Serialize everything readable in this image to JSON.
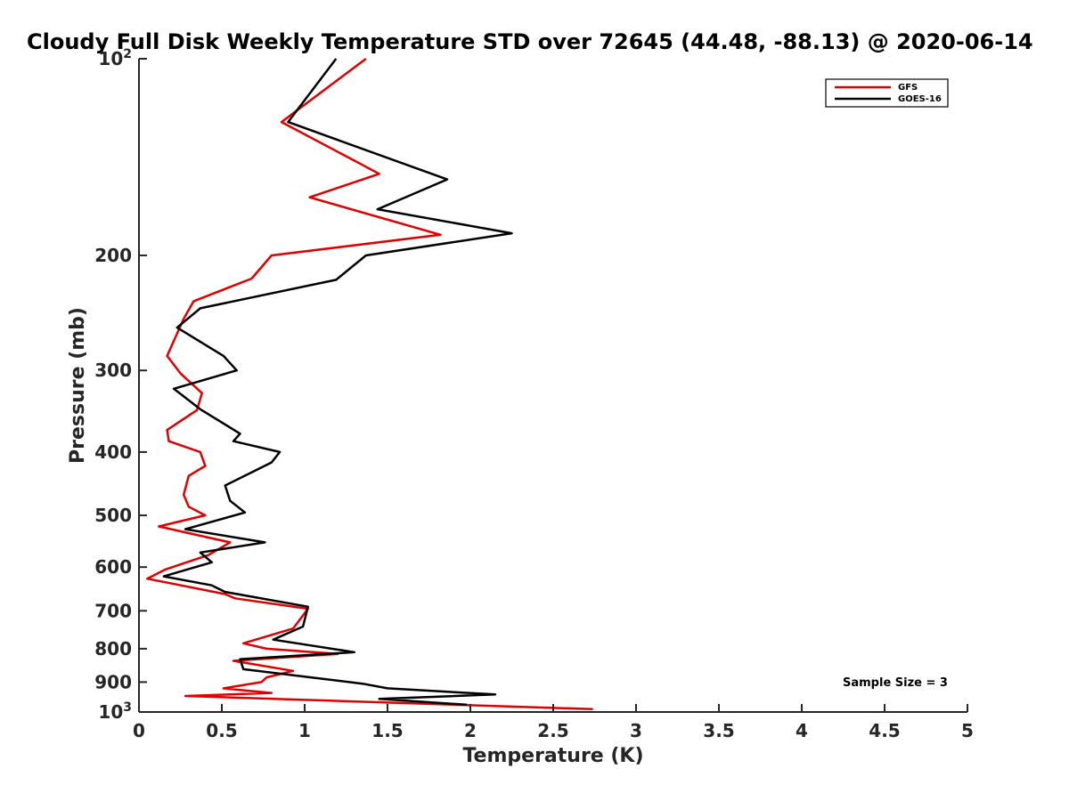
{
  "chart_data": {
    "type": "line",
    "title": "Cloudy Full Disk Weekly Temperature STD over 72645 (44.48, -88.13) @ 2020-06-14",
    "xlabel": "Temperature (K)",
    "ylabel": "Pressure (mb)",
    "xlim": [
      0,
      5
    ],
    "ylim": [
      100,
      1000
    ],
    "y_scale": "log",
    "y_reversed": true,
    "grid": false,
    "legend_position": "top-right",
    "x_ticks": [
      "0",
      "0.5",
      "1",
      "1.5",
      "2",
      "2.5",
      "3",
      "3.5",
      "4",
      "4.5",
      "5"
    ],
    "y_ticks": [
      {
        "value": 100,
        "base": "10",
        "exp": "2"
      },
      {
        "value": 200,
        "base": "200",
        "exp": ""
      },
      {
        "value": 300,
        "base": "300",
        "exp": ""
      },
      {
        "value": 400,
        "base": "400",
        "exp": ""
      },
      {
        "value": 500,
        "base": "500",
        "exp": ""
      },
      {
        "value": 600,
        "base": "600",
        "exp": ""
      },
      {
        "value": 700,
        "base": "700",
        "exp": ""
      },
      {
        "value": 800,
        "base": "800",
        "exp": ""
      },
      {
        "value": 900,
        "base": "900",
        "exp": ""
      },
      {
        "value": 1000,
        "base": "10",
        "exp": "3"
      }
    ],
    "annotation": "Sample Size = 3",
    "series": [
      {
        "name": "GFS",
        "color": "#e00000",
        "points": [
          [
            1.37,
            100
          ],
          [
            0.86,
            125
          ],
          [
            1.45,
            150
          ],
          [
            1.03,
            163
          ],
          [
            1.82,
            186
          ],
          [
            0.8,
            200
          ],
          [
            0.68,
            217
          ],
          [
            0.33,
            235
          ],
          [
            0.27,
            250
          ],
          [
            0.17,
            285
          ],
          [
            0.25,
            303
          ],
          [
            0.38,
            325
          ],
          [
            0.35,
            345
          ],
          [
            0.17,
            370
          ],
          [
            0.18,
            385
          ],
          [
            0.37,
            400
          ],
          [
            0.4,
            420
          ],
          [
            0.3,
            435
          ],
          [
            0.27,
            465
          ],
          [
            0.3,
            485
          ],
          [
            0.4,
            500
          ],
          [
            0.12,
            520
          ],
          [
            0.55,
            550
          ],
          [
            0.42,
            575
          ],
          [
            0.16,
            605
          ],
          [
            0.05,
            625
          ],
          [
            0.52,
            660
          ],
          [
            0.58,
            670
          ],
          [
            1.02,
            695
          ],
          [
            0.93,
            745
          ],
          [
            0.63,
            785
          ],
          [
            0.77,
            800
          ],
          [
            1.2,
            815
          ],
          [
            0.57,
            835
          ],
          [
            0.93,
            865
          ],
          [
            0.77,
            885
          ],
          [
            0.74,
            900
          ],
          [
            0.51,
            920
          ],
          [
            0.8,
            935
          ],
          [
            0.28,
            945
          ],
          [
            2.74,
            990
          ]
        ]
      },
      {
        "name": "GOES-16",
        "color": "#000000",
        "points": [
          [
            1.19,
            100
          ],
          [
            0.9,
            125
          ],
          [
            1.86,
            153
          ],
          [
            1.44,
            170
          ],
          [
            2.25,
            185
          ],
          [
            1.37,
            200
          ],
          [
            1.19,
            218
          ],
          [
            0.37,
            241
          ],
          [
            0.23,
            258
          ],
          [
            0.51,
            285
          ],
          [
            0.59,
            300
          ],
          [
            0.21,
            320
          ],
          [
            0.37,
            344
          ],
          [
            0.61,
            375
          ],
          [
            0.57,
            385
          ],
          [
            0.85,
            400
          ],
          [
            0.8,
            415
          ],
          [
            0.52,
            450
          ],
          [
            0.55,
            475
          ],
          [
            0.64,
            495
          ],
          [
            0.28,
            525
          ],
          [
            0.76,
            550
          ],
          [
            0.37,
            570
          ],
          [
            0.44,
            590
          ],
          [
            0.15,
            620
          ],
          [
            0.44,
            640
          ],
          [
            0.52,
            655
          ],
          [
            1.02,
            690
          ],
          [
            0.99,
            740
          ],
          [
            0.81,
            775
          ],
          [
            1.3,
            810
          ],
          [
            0.61,
            830
          ],
          [
            0.63,
            860
          ],
          [
            1.35,
            905
          ],
          [
            1.5,
            920
          ],
          [
            2.15,
            940
          ],
          [
            1.45,
            955
          ],
          [
            1.98,
            975
          ]
        ]
      }
    ]
  }
}
